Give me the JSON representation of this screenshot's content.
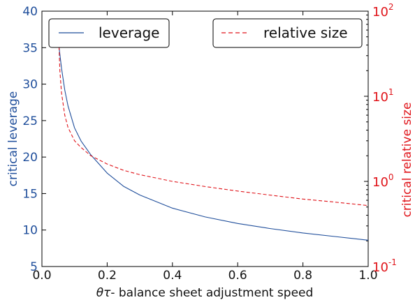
{
  "chart_data": {
    "type": "line",
    "xlabel_prefix": "θτ",
    "xlabel_rest": "- balance sheet adjustment speed",
    "ylabel_left": "critical leverage",
    "ylabel_right": "critical relative size",
    "xlim": [
      0.0,
      1.0
    ],
    "ylim_left": [
      5,
      40
    ],
    "ylim_right": [
      0.1,
      100
    ],
    "right_axis_scale": "log",
    "grid": false,
    "x_ticks": [
      "0.0",
      "0.2",
      "0.4",
      "0.6",
      "0.8",
      "1.0"
    ],
    "y_ticks_left": [
      "5",
      "10",
      "15",
      "20",
      "25",
      "30",
      "35",
      "40"
    ],
    "y_ticks_right": [
      {
        "base": "10",
        "exp": "-1"
      },
      {
        "base": "10",
        "exp": "0"
      },
      {
        "base": "10",
        "exp": "1"
      },
      {
        "base": "10",
        "exp": "2"
      }
    ],
    "colors": {
      "leverage": "#1f4e9b",
      "relative_size": "#e0141a"
    },
    "legend_left": {
      "label": "leverage",
      "placement": "top-left"
    },
    "legend_right": {
      "label": "relative size",
      "placement": "top-right"
    },
    "series": [
      {
        "name": "leverage",
        "axis": "left",
        "style": "solid",
        "x": [
          0.05,
          0.06,
          0.07,
          0.08,
          0.1,
          0.12,
          0.15,
          0.2,
          0.25,
          0.3,
          0.4,
          0.5,
          0.6,
          0.7,
          0.8,
          0.9,
          1.0
        ],
        "y": [
          36.0,
          32.2,
          29.2,
          27.0,
          24.0,
          22.2,
          20.3,
          17.8,
          16.0,
          14.8,
          13.0,
          11.8,
          10.9,
          10.2,
          9.6,
          9.1,
          8.6
        ]
      },
      {
        "name": "relative size",
        "axis": "right",
        "style": "dashed",
        "x": [
          0.05,
          0.055,
          0.06,
          0.07,
          0.08,
          0.1,
          0.12,
          0.15,
          0.2,
          0.25,
          0.3,
          0.4,
          0.5,
          0.6,
          0.7,
          0.8,
          0.9,
          1.0
        ],
        "y": [
          70,
          20,
          11,
          6.0,
          4.3,
          3.0,
          2.5,
          2.0,
          1.6,
          1.35,
          1.2,
          1.0,
          0.87,
          0.77,
          0.69,
          0.62,
          0.57,
          0.52
        ]
      }
    ]
  }
}
